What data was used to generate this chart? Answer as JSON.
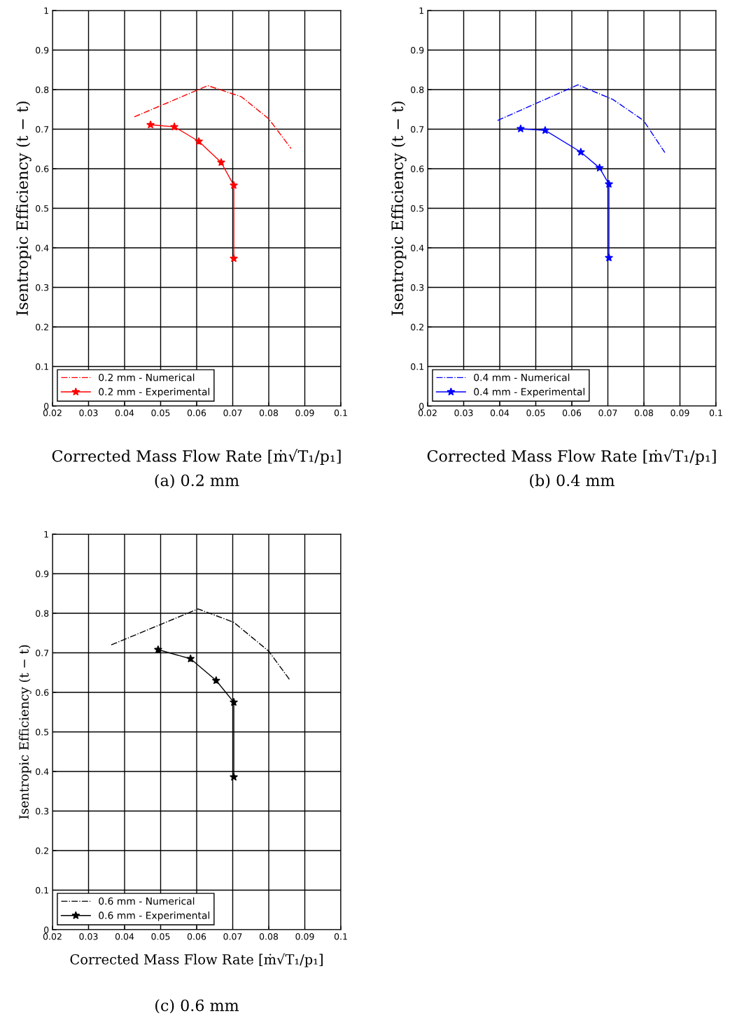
{
  "chart_data": [
    {
      "type": "line",
      "title": "(a) 0.2 mm",
      "xlabel": "Corrected Mass Flow Rate [ṁ√T₁/p₁]",
      "ylabel": "Isentropic Efficiency (t − t)",
      "xlim": [
        0.02,
        0.1
      ],
      "ylim": [
        0,
        1
      ],
      "xticks": [
        0.02,
        0.03,
        0.04,
        0.05,
        0.06,
        0.07,
        0.08,
        0.09,
        0.1
      ],
      "yticks": [
        0,
        0.1,
        0.2,
        0.3,
        0.4,
        0.5,
        0.6,
        0.7,
        0.8,
        0.9,
        1
      ],
      "grid": true,
      "legend": "bottom left",
      "series": [
        {
          "name": "0.2 mm - Numerical",
          "color": "#ff0000",
          "line_style": "dashdot",
          "marker": "none",
          "x": [
            0.0427,
            0.0631,
            0.0724,
            0.08,
            0.0862
          ],
          "values": [
            0.731,
            0.81,
            0.782,
            0.726,
            0.651
          ]
        },
        {
          "name": "0.2 mm - Experimental",
          "color": "#ff0000",
          "line_style": "solid",
          "marker": "star",
          "x": [
            0.0472,
            0.0538,
            0.0606,
            0.0668,
            0.0703,
            0.0703
          ],
          "values": [
            0.711,
            0.706,
            0.669,
            0.616,
            0.558,
            0.373
          ]
        }
      ]
    },
    {
      "type": "line",
      "title": "(b) 0.4 mm",
      "xlabel": "Corrected Mass Flow Rate [ṁ√T₁/p₁]",
      "ylabel": "Isentropic Efficiency (t − t)",
      "xlim": [
        0.02,
        0.1
      ],
      "ylim": [
        0,
        1
      ],
      "xticks": [
        0.02,
        0.03,
        0.04,
        0.05,
        0.06,
        0.07,
        0.08,
        0.09,
        0.1
      ],
      "yticks": [
        0,
        0.1,
        0.2,
        0.3,
        0.4,
        0.5,
        0.6,
        0.7,
        0.8,
        0.9,
        1
      ],
      "grid": true,
      "legend": "bottom left",
      "series": [
        {
          "name": "0.4 mm - Numerical",
          "color": "#0000ff",
          "line_style": "dashdot",
          "marker": "none",
          "x": [
            0.0394,
            0.0617,
            0.0714,
            0.0799,
            0.0858
          ],
          "values": [
            0.722,
            0.812,
            0.775,
            0.722,
            0.641
          ]
        },
        {
          "name": "0.4 mm - Experimental",
          "color": "#0000ff",
          "line_style": "solid",
          "marker": "star",
          "x": [
            0.0458,
            0.0526,
            0.0625,
            0.0677,
            0.0703,
            0.0703
          ],
          "values": [
            0.701,
            0.697,
            0.642,
            0.602,
            0.561,
            0.375
          ]
        }
      ]
    },
    {
      "type": "line",
      "title": "(c) 0.6 mm",
      "xlabel": "Corrected Mass Flow Rate [ṁ√T₁/p₁]",
      "ylabel": "Isentropic Efficiency (t − t)",
      "xlim": [
        0.02,
        0.1
      ],
      "ylim": [
        0,
        1
      ],
      "xticks": [
        0.02,
        0.03,
        0.04,
        0.05,
        0.06,
        0.07,
        0.08,
        0.09,
        0.1
      ],
      "yticks": [
        0,
        0.1,
        0.2,
        0.3,
        0.4,
        0.5,
        0.6,
        0.7,
        0.8,
        0.9,
        1
      ],
      "grid": true,
      "legend": "bottom left",
      "series": [
        {
          "name": "0.6 mm - Numerical",
          "color": "#000000",
          "line_style": "dashdot",
          "marker": "none",
          "x": [
            0.0363,
            0.0604,
            0.0703,
            0.08,
            0.0858
          ],
          "values": [
            0.72,
            0.811,
            0.777,
            0.704,
            0.632
          ]
        },
        {
          "name": "0.6 mm - Experimental",
          "color": "#000000",
          "line_style": "solid",
          "marker": "star",
          "x": [
            0.0493,
            0.0583,
            0.0654,
            0.0703,
            0.0703
          ],
          "values": [
            0.708,
            0.685,
            0.63,
            0.575,
            0.386
          ]
        }
      ]
    }
  ]
}
